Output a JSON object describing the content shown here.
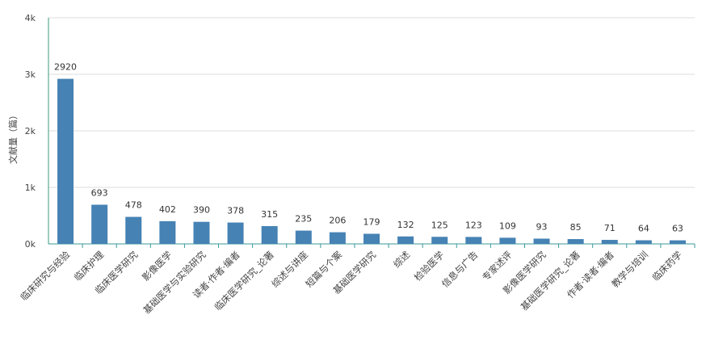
{
  "chart_data": {
    "type": "bar",
    "y_label": "文献量（篇）",
    "categories": [
      "临床研究与经验",
      "临床护理",
      "临床医学研究",
      "影像医学",
      "基础医学与实验研究",
      "读者·作者·编者",
      "临床医学研究_论著",
      "综述与讲座",
      "短篇与个案",
      "基础医学研究",
      "综述",
      "检验医学",
      "信息与广告",
      "专家述评",
      "影像医学研究",
      "基础医学研究_论著",
      "作者·读者·编者",
      "教学与培训",
      "临床药学"
    ],
    "values": [
      2920,
      693,
      478,
      402,
      390,
      378,
      315,
      235,
      206,
      179,
      132,
      125,
      123,
      109,
      93,
      85,
      71,
      64,
      63
    ],
    "color": "#4682b4",
    "ylim": [
      0,
      4000
    ],
    "yticks": [
      {
        "value": 0,
        "label": "0k"
      },
      {
        "value": 1000,
        "label": "1k"
      },
      {
        "value": 2000,
        "label": "2k"
      },
      {
        "value": 3000,
        "label": "3k"
      },
      {
        "value": 4000,
        "label": "4k"
      }
    ],
    "grid": true
  }
}
